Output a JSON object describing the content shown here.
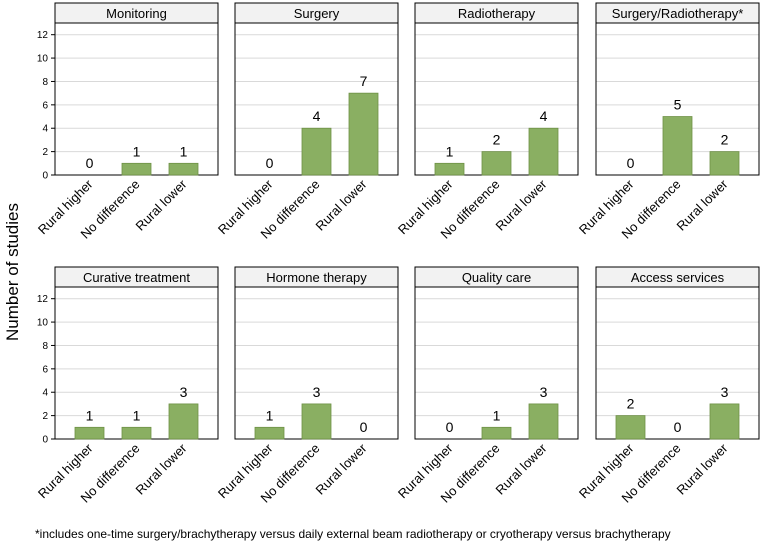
{
  "chart_data": {
    "type": "bar",
    "ylabel": "Number of studies",
    "ylim": [
      0,
      13
    ],
    "yticks": [
      0,
      2,
      4,
      6,
      8,
      10,
      12
    ],
    "grid": true,
    "bar_color": "#8aaf62",
    "categories": [
      "Rural higher",
      "No difference",
      "Rural lower"
    ],
    "panels": [
      {
        "title": "Monitoring",
        "values": [
          0,
          1,
          1
        ]
      },
      {
        "title": "Surgery",
        "values": [
          0,
          4,
          7
        ]
      },
      {
        "title": "Radiotherapy",
        "values": [
          1,
          2,
          4
        ]
      },
      {
        "title": "Surgery/Radiotherapy*",
        "values": [
          0,
          5,
          2
        ]
      },
      {
        "title": "Curative treatment",
        "values": [
          1,
          1,
          3
        ]
      },
      {
        "title": "Hormone therapy",
        "values": [
          1,
          3,
          0
        ]
      },
      {
        "title": "Quality care",
        "values": [
          0,
          1,
          3
        ]
      },
      {
        "title": "Access services",
        "values": [
          2,
          0,
          3
        ]
      }
    ],
    "footnote": "*includes one-time surgery/brachytherapy versus daily external beam radiotherapy or cryotherapy versus brachytherapy"
  }
}
